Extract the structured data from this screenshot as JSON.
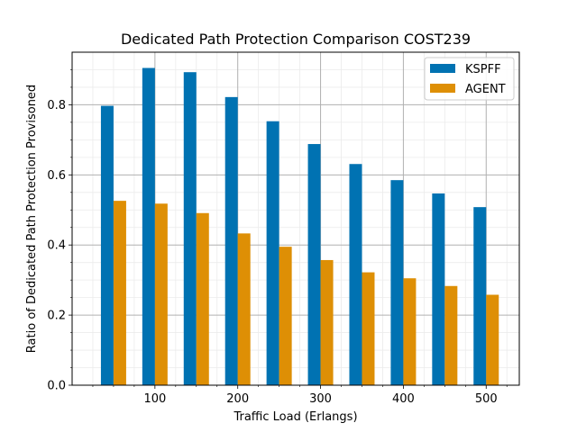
{
  "chart_data": {
    "type": "bar",
    "title": "Dedicated Path Protection Comparison COST239",
    "xlabel": "Traffic Load (Erlangs)",
    "ylabel": "Ratio of Dedicated Path Protection Provisoned",
    "x": [
      50,
      100,
      150,
      200,
      250,
      300,
      350,
      400,
      450,
      500
    ],
    "xlim": [
      0,
      540
    ],
    "ylim": [
      0,
      0.95
    ],
    "x_ticks": [
      "100",
      "200",
      "300",
      "400",
      "500"
    ],
    "y_ticks": [
      "0.0",
      "0.2",
      "0.4",
      "0.6",
      "0.8"
    ],
    "grid": true,
    "legend_position": "top-right",
    "series": [
      {
        "name": "KSPFF",
        "color": "#0072b2",
        "values": [
          0.797,
          0.905,
          0.893,
          0.822,
          0.753,
          0.688,
          0.631,
          0.585,
          0.547,
          0.508
        ]
      },
      {
        "name": "AGENT",
        "color": "#de8f05",
        "values": [
          0.526,
          0.518,
          0.491,
          0.433,
          0.395,
          0.357,
          0.322,
          0.305,
          0.283,
          0.258
        ]
      }
    ]
  }
}
